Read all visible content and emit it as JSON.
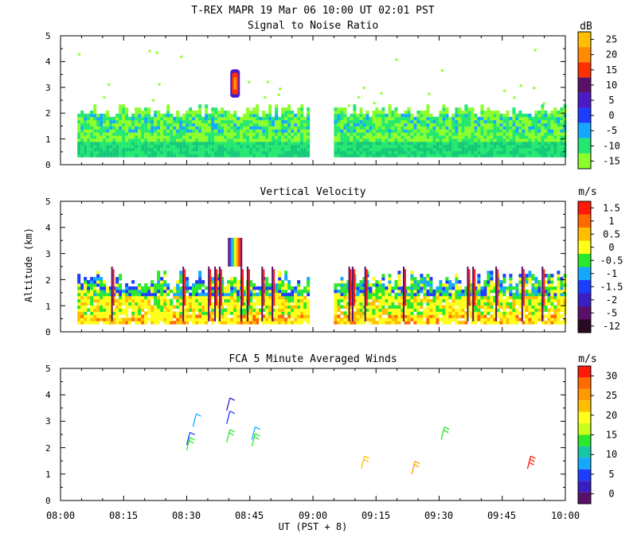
{
  "header": {
    "title": "T-REX   MAPR 19 Mar 06   10:00 UT   02:01   PST"
  },
  "shared_axes": {
    "x_ticks": [
      "08:00",
      "08:15",
      "08:30",
      "08:45",
      "09:00",
      "09:15",
      "09:30",
      "09:45",
      "10:00"
    ],
    "x_label": "UT  (PST + 8)",
    "y_label": "Altitude (km)",
    "y_ticks": [
      "0",
      "1",
      "2",
      "3",
      "4",
      "5"
    ]
  },
  "chart_data": [
    {
      "type": "heatmap",
      "title": "Signal to Noise Ratio",
      "xlabel": "UT  (PST + 8)",
      "ylabel": "Altitude (km)",
      "xlim_minutes": [
        0,
        120
      ],
      "ylim": [
        0,
        5
      ],
      "y_ticks": [
        0,
        1,
        2,
        3,
        4,
        5
      ],
      "colorbar": {
        "unit": "dB",
        "labels": [
          "25",
          "20",
          "15",
          "10",
          "5",
          "0",
          "-5",
          "-10",
          "-15"
        ],
        "colors": [
          "#ffbf00",
          "#ff8c00",
          "#ff3000",
          "#5a0f6b",
          "#4b19c8",
          "#1a3dff",
          "#15a8ff",
          "#22e870",
          "#8cff2a"
        ]
      },
      "data_coverage": [
        {
          "start_min": 4,
          "end_min": 59,
          "alt_min": 0.3,
          "alt_max": 2.3
        },
        {
          "start_min": 65,
          "end_min": 120,
          "alt_min": 0.3,
          "alt_max": 2.3
        }
      ],
      "features": [
        {
          "time_min": 41.5,
          "alt_min": 2.6,
          "alt_max": 3.7,
          "value_db": 15
        }
      ]
    },
    {
      "type": "heatmap",
      "title": "Vertical Velocity",
      "xlabel": "UT  (PST + 8)",
      "ylabel": "Altitude (km)",
      "xlim_minutes": [
        0,
        120
      ],
      "ylim": [
        0,
        5
      ],
      "y_ticks": [
        0,
        1,
        2,
        3,
        4,
        5
      ],
      "colorbar": {
        "unit": "m/s",
        "labels": [
          "1.5",
          "1",
          "0.5",
          "0",
          "-0.5",
          "-1",
          "-1.5",
          "-2",
          "-5",
          "-12"
        ],
        "colors": [
          "#ff1a0a",
          "#ff6a00",
          "#ffbf00",
          "#ffff1a",
          "#2ae82a",
          "#15a8ff",
          "#1a3dff",
          "#3a1ec4",
          "#5a0f6b",
          "#2a0a22"
        ]
      },
      "data_coverage": [
        {
          "start_min": 4,
          "end_min": 59,
          "alt_min": 0.3,
          "alt_max": 2.3
        },
        {
          "start_min": 65,
          "end_min": 120,
          "alt_min": 0.3,
          "alt_max": 2.3
        }
      ],
      "features": [
        {
          "time_min": 41.5,
          "alt_min": 2.5,
          "alt_max": 3.6,
          "value": "rainbow plume"
        }
      ]
    },
    {
      "type": "scatter",
      "title": "FCA 5 Minute Averaged Winds",
      "xlabel": "UT  (PST + 8)",
      "ylabel": "Altitude (km)",
      "xlim_minutes": [
        0,
        120
      ],
      "ylim": [
        0,
        5
      ],
      "y_ticks": [
        0,
        1,
        2,
        3,
        4,
        5
      ],
      "colorbar": {
        "unit": "m/s",
        "labels": [
          "30",
          "25",
          "20",
          "15",
          "10",
          "5",
          "0"
        ],
        "colors": [
          "#ff1a0a",
          "#ff6a00",
          "#ff9a00",
          "#ffbf00",
          "#ffff1a",
          "#c8ff1a",
          "#2ae82a",
          "#15c8a8",
          "#15a8ff",
          "#1a3dff",
          "#3a1ec4",
          "#5a0f6b"
        ]
      },
      "series": [
        {
          "name": "wind barbs",
          "points": [
            {
              "time_min": 30,
              "alt_km": 2.1,
              "speed_ms": 7,
              "color": "#1a3dff"
            },
            {
              "time_min": 30,
              "alt_km": 1.9,
              "speed_ms": 15,
              "color": "#2ae82a"
            },
            {
              "time_min": 31.5,
              "alt_km": 2.8,
              "speed_ms": 10,
              "color": "#15a8ff"
            },
            {
              "time_min": 39.5,
              "alt_km": 3.4,
              "speed_ms": 5,
              "color": "#3a1ec4"
            },
            {
              "time_min": 39.5,
              "alt_km": 2.9,
              "speed_ms": 5,
              "color": "#1a3dff"
            },
            {
              "time_min": 39.5,
              "alt_km": 2.2,
              "speed_ms": 15,
              "color": "#2ae82a"
            },
            {
              "time_min": 45.5,
              "alt_km": 2.3,
              "speed_ms": 10,
              "color": "#15a8ff"
            },
            {
              "time_min": 45.5,
              "alt_km": 2.05,
              "speed_ms": 15,
              "color": "#2ae82a"
            },
            {
              "time_min": 71.5,
              "alt_km": 1.2,
              "speed_ms": 20,
              "color": "#ffbf00"
            },
            {
              "time_min": 83.5,
              "alt_km": 1.0,
              "speed_ms": 20,
              "color": "#ff9a00"
            },
            {
              "time_min": 90.5,
              "alt_km": 2.3,
              "speed_ms": 15,
              "color": "#2ae82a"
            },
            {
              "time_min": 111,
              "alt_km": 1.2,
              "speed_ms": 30,
              "color": "#ff1a0a"
            }
          ]
        }
      ]
    }
  ]
}
